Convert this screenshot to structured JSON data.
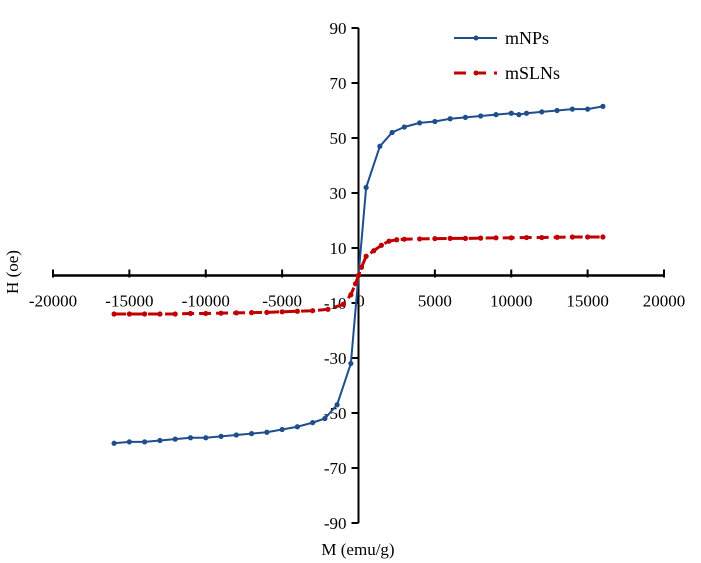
{
  "chart_data": {
    "type": "line",
    "title": "",
    "xlabel": "M (emu/g)",
    "ylabel": "H (oe)",
    "xlim": [
      -20000,
      20000
    ],
    "ylim": [
      -90,
      90
    ],
    "xticks": [
      -20000,
      -15000,
      -10000,
      -5000,
      0,
      5000,
      10000,
      15000,
      20000
    ],
    "yticks": [
      90,
      70,
      50,
      30,
      10,
      -10,
      -30,
      -50,
      -70,
      -90
    ],
    "grid": false,
    "legend_position": "top-right",
    "series": [
      {
        "name": "mNPs",
        "color": "#1f4e8c",
        "style": "solid",
        "x": [
          -16000,
          -15000,
          -14000,
          -13000,
          -12000,
          -11000,
          -10000,
          -9000,
          -8000,
          -7000,
          -6000,
          -5000,
          -4000,
          -3000,
          -2200,
          -1400,
          -500,
          0,
          500,
          1400,
          2200,
          3000,
          4000,
          5000,
          6000,
          7000,
          8000,
          9000,
          10000,
          10500,
          11000,
          12000,
          13000,
          14000,
          15000,
          16000
        ],
        "y": [
          -61,
          -60.5,
          -60.5,
          -60,
          -59.5,
          -59,
          -59,
          -58.5,
          -58,
          -57.5,
          -57,
          -56,
          -55,
          -53.5,
          -52,
          -47,
          -32,
          0,
          32,
          47,
          52,
          54,
          55.5,
          56,
          57,
          57.5,
          58,
          58.5,
          59,
          58.5,
          59,
          59.5,
          60,
          60.5,
          60.5,
          61.5
        ]
      },
      {
        "name": "mSLNs",
        "color": "#c00000",
        "style": "dashed",
        "x": [
          -16000,
          -15000,
          -14000,
          -13000,
          -12000,
          -11000,
          -10000,
          -9000,
          -8000,
          -7000,
          -6000,
          -5000,
          -4000,
          -3000,
          -2000,
          -1000,
          -500,
          -200,
          0,
          200,
          500,
          1000,
          1500,
          2000,
          2500,
          3000,
          4000,
          5000,
          6000,
          7000,
          8000,
          9000,
          10000,
          11000,
          12000,
          13000,
          14000,
          15000,
          16000
        ],
        "y": [
          -14,
          -14,
          -14,
          -14,
          -14,
          -13.8,
          -13.8,
          -13.7,
          -13.6,
          -13.5,
          -13.4,
          -13.2,
          -13,
          -12.8,
          -12.3,
          -10.5,
          -7,
          -3,
          0,
          3,
          7,
          9,
          11,
          12.5,
          13,
          13.2,
          13.3,
          13.4,
          13.5,
          13.5,
          13.6,
          13.7,
          13.7,
          13.8,
          13.8,
          13.9,
          14,
          14,
          14
        ]
      }
    ]
  }
}
